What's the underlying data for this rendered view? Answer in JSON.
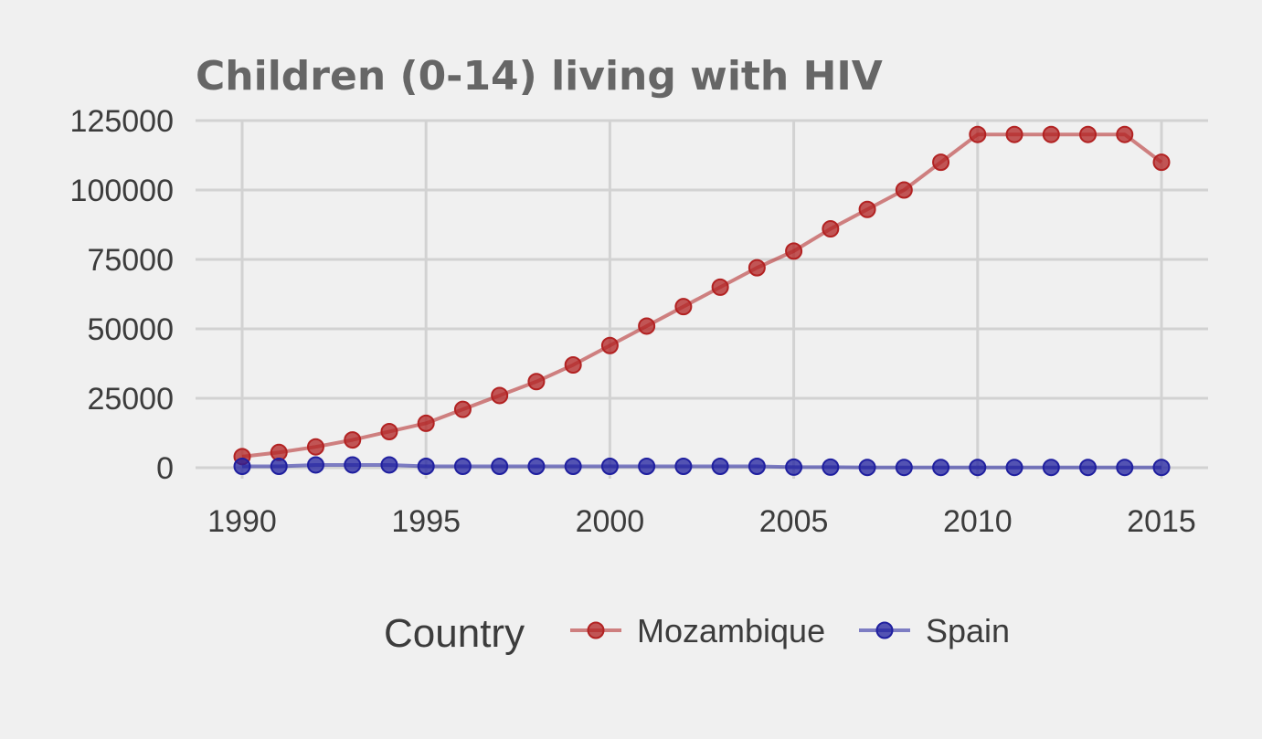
{
  "chart_data": {
    "type": "line",
    "title": "Children (0-14) living with HIV",
    "xlabel": "",
    "ylabel": "",
    "x": [
      1990,
      1991,
      1992,
      1993,
      1994,
      1995,
      1996,
      1997,
      1998,
      1999,
      2000,
      2001,
      2002,
      2003,
      2004,
      2005,
      2006,
      2007,
      2008,
      2009,
      2010,
      2011,
      2012,
      2013,
      2014,
      2015
    ],
    "xlim": [
      1990,
      2015
    ],
    "ylim": [
      0,
      125000
    ],
    "x_ticks": [
      "1990",
      "1995",
      "2000",
      "2005",
      "2010",
      "2015"
    ],
    "y_ticks": [
      "0",
      "25000",
      "50000",
      "75000",
      "100000",
      "125000"
    ],
    "grid": true,
    "legend": {
      "title": "Country",
      "position": "bottom"
    },
    "series": [
      {
        "name": "Mozambique",
        "color": "#b22222",
        "values": [
          4000,
          5500,
          7500,
          10000,
          13000,
          16000,
          21000,
          26000,
          31000,
          37000,
          44000,
          51000,
          58000,
          65000,
          72000,
          78000,
          86000,
          93000,
          100000,
          110000,
          120000,
          120000,
          120000,
          120000,
          120000,
          110000
        ]
      },
      {
        "name": "Spain",
        "color": "#1f1f9f",
        "values": [
          500,
          500,
          1000,
          1000,
          1000,
          500,
          500,
          500,
          500,
          500,
          500,
          500,
          500,
          500,
          500,
          200,
          200,
          100,
          100,
          100,
          100,
          100,
          100,
          100,
          100,
          100
        ]
      }
    ]
  }
}
